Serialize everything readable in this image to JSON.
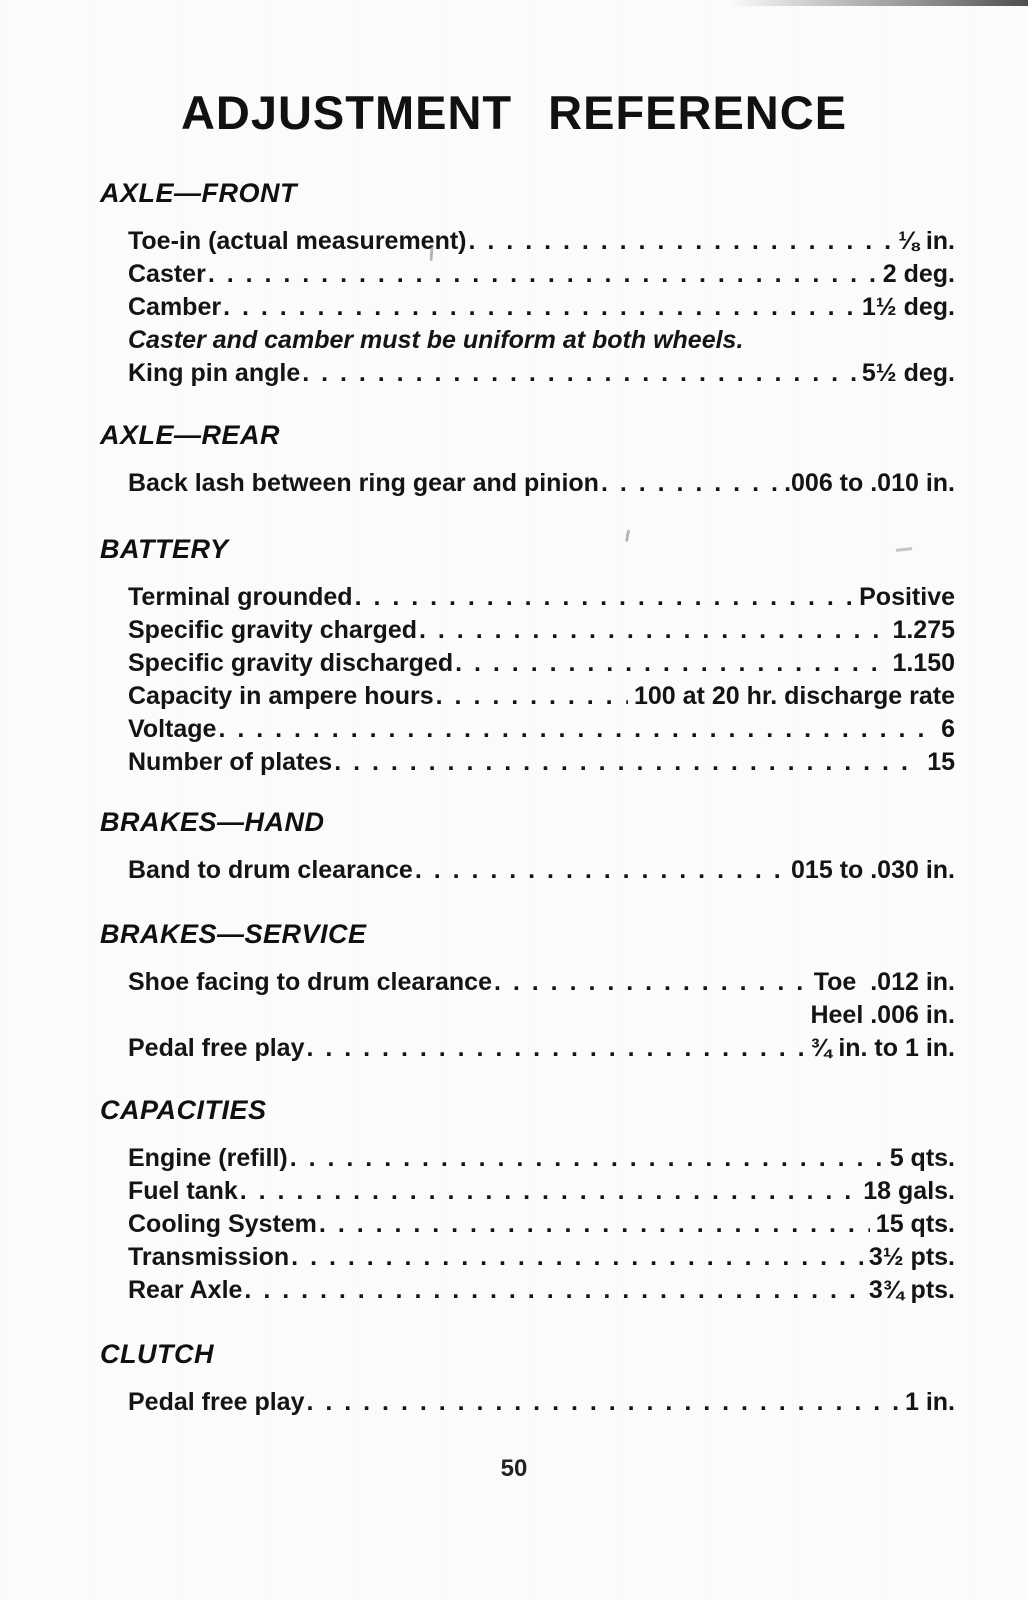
{
  "page": {
    "title": "ADJUSTMENT REFERENCE",
    "page_number": "50"
  },
  "sections": [
    {
      "heading": "AXLE—FRONT",
      "items": [
        {
          "label": "Toe-in (actual measurement)",
          "value": "⅛ in."
        },
        {
          "label": "Caster",
          "value": "2 deg."
        },
        {
          "label": "Camber",
          "value": "1½ deg."
        },
        {
          "note": "Caster and camber must be uniform at both wheels."
        },
        {
          "label": "King pin angle",
          "value": "5½ deg."
        }
      ]
    },
    {
      "heading": "AXLE—REAR",
      "items": [
        {
          "label": "Back lash between ring gear and pinion",
          "value": ".006 to .010 in."
        }
      ]
    },
    {
      "heading": "BATTERY",
      "items": [
        {
          "label": "Terminal grounded",
          "value": "Positive"
        },
        {
          "label": "Specific gravity charged",
          "value": "1.275"
        },
        {
          "label": "Specific gravity discharged",
          "value": "1.150"
        },
        {
          "label": "Capacity in ampere hours",
          "value": "100 at 20 hr. discharge rate"
        },
        {
          "label": "Voltage",
          "value": "6"
        },
        {
          "label": "Number of plates",
          "value": "15"
        }
      ]
    },
    {
      "heading": "BRAKES—HAND",
      "items": [
        {
          "label": "Band to drum clearance",
          "value": "015 to .030 in."
        }
      ]
    },
    {
      "heading": "BRAKES—SERVICE",
      "items": [
        {
          "label": "Shoe facing to drum clearance",
          "value": "Toe  .012 in.",
          "value2": "Heel .006 in."
        },
        {
          "label": "Pedal free play",
          "value": "¾ in. to 1 in."
        }
      ]
    },
    {
      "heading": "CAPACITIES",
      "items": [
        {
          "label": "Engine (refill)",
          "value": "5 qts."
        },
        {
          "label": "Fuel tank",
          "value": "18 gals."
        },
        {
          "label": "Cooling System",
          "value": "15 qts."
        },
        {
          "label": "Transmission",
          "value": "3½ pts."
        },
        {
          "label": "Rear Axle",
          "value": "3¾ pts."
        }
      ]
    },
    {
      "heading": "CLUTCH",
      "items": [
        {
          "label": "Pedal free play",
          "value": "1 in."
        }
      ]
    }
  ]
}
